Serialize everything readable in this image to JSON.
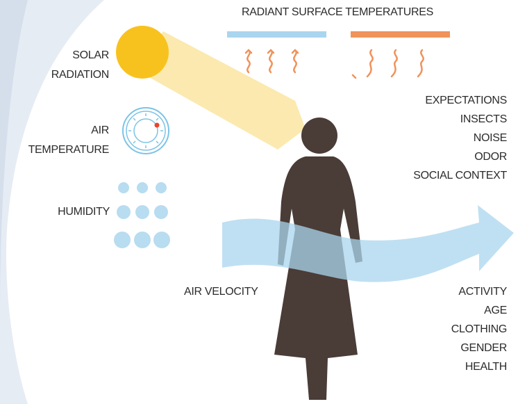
{
  "title": "RADIANT SURFACE TEMPERATURES",
  "left_factors": {
    "solar_radiation": [
      "SOLAR",
      "RADIATION"
    ],
    "air_temperature": [
      "AIR",
      "TEMPERATURE"
    ],
    "humidity": "HUMIDITY"
  },
  "air_velocity": "AIR VELOCITY",
  "context_factors": [
    "EXPECTATIONS",
    "INSECTS",
    "NOISE",
    "ODOR",
    "SOCIAL CONTEXT"
  ],
  "personal_factors": [
    "ACTIVITY",
    "AGE",
    "CLOTHING",
    "GENDER",
    "HEALTH"
  ]
}
